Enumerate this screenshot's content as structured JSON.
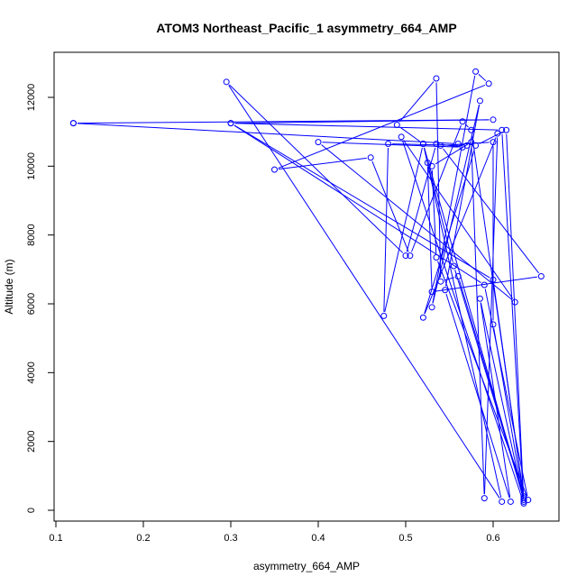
{
  "chart_data": {
    "type": "line",
    "title": "ATOM3 Northeast_Pacific_1 asymmetry_664_AMP",
    "xlabel": "asymmetry_664_AMP",
    "ylabel": "Altitude (m)",
    "xlim": [
      0.1,
      0.66
    ],
    "ylim": [
      0,
      13000
    ],
    "xticks": [
      0.1,
      0.2,
      0.3,
      0.4,
      0.5,
      0.6
    ],
    "xtick_labels": [
      "0.1",
      "0.2",
      "0.3",
      "0.4",
      "0.5",
      "0.6"
    ],
    "yticks": [
      0,
      2000,
      4000,
      6000,
      8000,
      10000,
      12000
    ],
    "ytick_labels": [
      "0",
      "2000",
      "4000",
      "6000",
      "8000",
      "10000",
      "12000"
    ],
    "grid": false,
    "color": "#0000ff",
    "series": [
      {
        "points": [
          [
            0.12,
            11250
          ],
          [
            0.6,
            11350
          ],
          [
            0.3,
            11250
          ],
          [
            0.6,
            6700
          ],
          [
            0.635,
            350
          ],
          [
            0.555,
            7100
          ],
          [
            0.525,
            10100
          ],
          [
            0.53,
            6350
          ],
          [
            0.655,
            6800
          ],
          [
            0.54,
            10600
          ],
          [
            0.6,
            10700
          ],
          [
            0.6,
            5400
          ],
          [
            0.635,
            300
          ],
          [
            0.52,
            10650
          ],
          [
            0.49,
            11200
          ],
          [
            0.535,
            12550
          ],
          [
            0.54,
            6650
          ],
          [
            0.56,
            6800
          ],
          [
            0.635,
            400
          ],
          [
            0.575,
            11050
          ],
          [
            0.565,
            11300
          ],
          [
            0.505,
            7400
          ],
          [
            0.46,
            10250
          ],
          [
            0.35,
            9900
          ],
          [
            0.595,
            12400
          ],
          [
            0.58,
            12750
          ],
          [
            0.53,
            5900
          ],
          [
            0.585,
            11900
          ],
          [
            0.545,
            6400
          ],
          [
            0.62,
            250
          ],
          [
            0.585,
            6150
          ],
          [
            0.635,
            250
          ],
          [
            0.615,
            11050
          ],
          [
            0.58,
            10600
          ],
          [
            0.52,
            5600
          ],
          [
            0.605,
            10950
          ],
          [
            0.59,
            350
          ],
          [
            0.575,
            10700
          ],
          [
            0.53,
            10000
          ],
          [
            0.535,
            7350
          ],
          [
            0.64,
            300
          ],
          [
            0.59,
            6550
          ],
          [
            0.3,
            11250
          ],
          [
            0.61,
            11050
          ],
          [
            0.635,
            200
          ],
          [
            0.495,
            10850
          ],
          [
            0.625,
            6050
          ],
          [
            0.4,
            10700
          ],
          [
            0.565,
            10550
          ],
          [
            0.535,
            10650
          ],
          [
            0.5,
            7400
          ],
          [
            0.295,
            12450
          ],
          [
            0.61,
            250
          ],
          [
            0.52,
            10650
          ],
          [
            0.475,
            5650
          ],
          [
            0.48,
            10650
          ],
          [
            0.57,
            10600
          ],
          [
            0.56,
            10650
          ],
          [
            0.12,
            11250
          ]
        ]
      }
    ]
  }
}
